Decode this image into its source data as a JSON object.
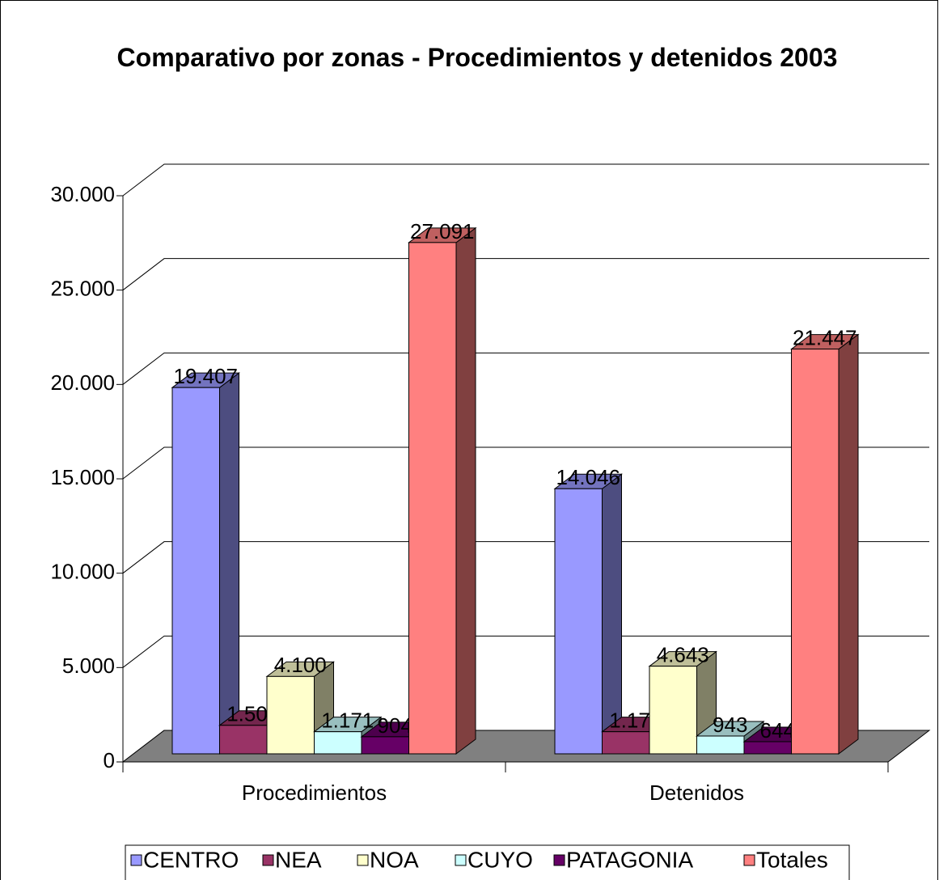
{
  "chart_data": {
    "type": "bar3d",
    "title": "Comparativo por zonas - Procedimientos y detenidos 2003",
    "categories": [
      "Procedimientos",
      "Detenidos"
    ],
    "series": [
      {
        "name": "CENTRO",
        "color": "#9999ff",
        "values": [
          19407,
          14046
        ],
        "value_labels": [
          "19.407",
          "14.046"
        ]
      },
      {
        "name": "NEA",
        "color": "#993366",
        "values": [
          1509,
          1171
        ],
        "value_labels": [
          "1.509",
          "1.171"
        ]
      },
      {
        "name": "NOA",
        "color": "#ffffcc",
        "values": [
          4100,
          4643
        ],
        "value_labels": [
          "4.100",
          "4.643"
        ]
      },
      {
        "name": "CUYO",
        "color": "#ccffff",
        "values": [
          1171,
          943
        ],
        "value_labels": [
          "1.171",
          "943"
        ]
      },
      {
        "name": "PATAGONIA",
        "color": "#660066",
        "values": [
          904,
          644
        ],
        "value_labels": [
          "904",
          "644"
        ]
      },
      {
        "name": "Totales",
        "color": "#ff8080",
        "values": [
          27091,
          21447
        ],
        "value_labels": [
          "27.091",
          "21.447"
        ]
      }
    ],
    "ylim": [
      0,
      30000
    ],
    "yticks": [
      0,
      {
        "value": 5000,
        "label": "5.000"
      },
      {
        "value": 10000,
        "label": "10.000"
      },
      {
        "value": 15000,
        "label": "15.000"
      },
      {
        "value": 20000,
        "label": "20.000"
      },
      {
        "value": 25000,
        "label": "25.000"
      },
      {
        "value": 30000,
        "label": "30.000"
      }
    ],
    "grid": true,
    "legend": "bottom"
  }
}
